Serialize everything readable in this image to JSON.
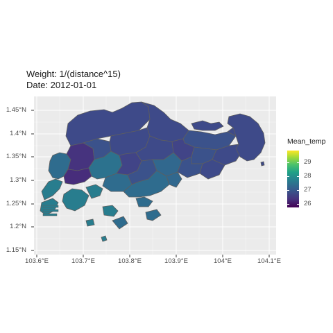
{
  "title_line1": "Weight: 1/(distance^15)",
  "title_line2": "Date: 2012-01-01",
  "y_ticks": [
    "1.45°N",
    "1.4°N",
    "1.35°N",
    "1.3°N",
    "1.25°N",
    "1.2°N",
    "1.15°N"
  ],
  "x_ticks": [
    "103.6°E",
    "103.7°E",
    "103.8°E",
    "103.9°E",
    "104°E",
    "104.1°E"
  ],
  "legend": {
    "title": "Mean_temp",
    "labels": [
      "29",
      "28",
      "27",
      "26"
    ]
  },
  "colors": {
    "panel_bg": "#ebebeb",
    "grid": "#ffffff",
    "border": "#5e5e5e",
    "region_dark": "#46337e",
    "region_mid": "#3e4a89",
    "region_teal": "#2f6c8e",
    "region_green_teal": "#287d8e"
  },
  "color_scale": "viridis"
}
